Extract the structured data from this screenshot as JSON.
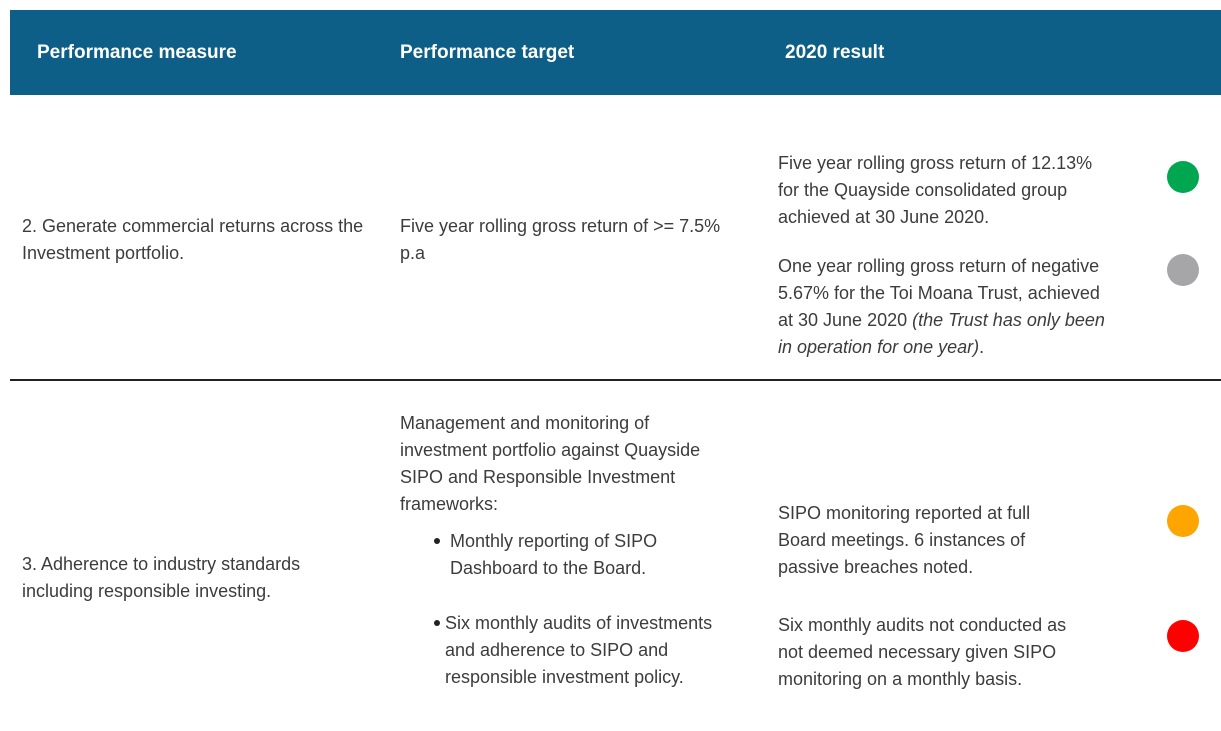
{
  "header": [
    "Performance measure",
    "Performance target",
    "2020 result"
  ],
  "rows": [
    {
      "measure": "2. Generate commercial returns across the Investment portfolio.",
      "target_intro": "Five year rolling gross return of >= 7.5% p.a",
      "results": [
        {
          "text": "Five year rolling gross return of 12.13% for the Quayside consolidated group achieved at 30 June 2020.",
          "color": "#00a650"
        },
        {
          "text": "One year rolling gross return of negative 5.67% for the Toi Moana Trust, achieved at 30 June 2020 ",
          "italic": "(the Trust has only been in operation for one year)",
          "tail": ".",
          "color": "#a6a6a8"
        }
      ]
    },
    {
      "measure": "3. Adherence to industry standards including responsible investing.",
      "target_intro": "Management and monitoring of investment portfolio against Quayside SIPO and Responsible Investment frameworks:",
      "target_bullets": [
        "Monthly reporting of SIPO Dashboard to the Board.",
        "Six monthly audits of investments and adherence to SIPO and responsible investment policy."
      ],
      "results": [
        {
          "text": "SIPO monitoring reported at full Board meetings. 6 instances of passive breaches noted.",
          "color": "#ffa500"
        },
        {
          "text": "Six monthly audits not conducted as not deemed necessary given SIPO monitoring on a monthly basis.",
          "color": "#ff0000"
        }
      ]
    }
  ]
}
